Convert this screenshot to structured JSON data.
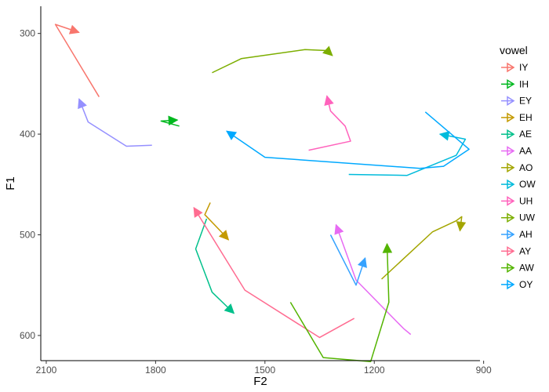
{
  "chart_data": {
    "type": "line",
    "title": "",
    "xlabel": "F2",
    "ylabel": "F1",
    "x_reversed": true,
    "y_reversed": true,
    "xlim": [
      2115,
      910
    ],
    "ylim": [
      625,
      273
    ],
    "x_ticks": [
      2100,
      1800,
      1500,
      1200,
      900
    ],
    "y_ticks": [
      300,
      400,
      500,
      600
    ],
    "grid": false,
    "legend": {
      "title": "vowel",
      "position": "right"
    },
    "series": [
      {
        "name": "IY",
        "color": "#F8766D",
        "points": [
          [
            1955,
            363
          ],
          [
            2025,
            321
          ],
          [
            2075,
            291
          ],
          [
            2010,
            299
          ]
        ]
      },
      {
        "name": "IH",
        "color": "#00B81F",
        "points": [
          [
            1735,
            392
          ],
          [
            1785,
            387
          ],
          [
            1740,
            386
          ]
        ]
      },
      {
        "name": "EY",
        "color": "#9590FF",
        "points": [
          [
            1810,
            411
          ],
          [
            1880,
            412
          ],
          [
            1985,
            388
          ],
          [
            2010,
            365
          ]
        ]
      },
      {
        "name": "EH",
        "color": "#C49A00",
        "points": [
          [
            1650,
            468
          ],
          [
            1665,
            480
          ],
          [
            1620,
            497
          ],
          [
            1600,
            505
          ]
        ]
      },
      {
        "name": "AE",
        "color": "#00C08B",
        "points": [
          [
            1660,
            484
          ],
          [
            1690,
            514
          ],
          [
            1645,
            557
          ],
          [
            1585,
            578
          ]
        ]
      },
      {
        "name": "AA",
        "color": "#E76BF3",
        "points": [
          [
            1100,
            599
          ],
          [
            1120,
            593
          ],
          [
            1250,
            545
          ],
          [
            1305,
            490
          ]
        ]
      },
      {
        "name": "AO",
        "color": "#A3A500",
        "points": [
          [
            1180,
            544
          ],
          [
            1040,
            497
          ],
          [
            975,
            486
          ],
          [
            960,
            482
          ],
          [
            965,
            496
          ]
        ]
      },
      {
        "name": "OW",
        "color": "#00BBDB",
        "points": [
          [
            1270,
            440
          ],
          [
            1110,
            441
          ],
          [
            975,
            421
          ],
          [
            950,
            405
          ],
          [
            1020,
            400
          ]
        ]
      },
      {
        "name": "UH",
        "color": "#FF62BC",
        "points": [
          [
            1380,
            416
          ],
          [
            1265,
            407
          ],
          [
            1280,
            392
          ],
          [
            1320,
            377
          ],
          [
            1330,
            362
          ]
        ]
      },
      {
        "name": "UW",
        "color": "#7CAE00",
        "points": [
          [
            1645,
            339
          ],
          [
            1565,
            325
          ],
          [
            1390,
            316
          ],
          [
            1330,
            317
          ],
          [
            1315,
            322
          ]
        ]
      },
      {
        "name": "AH",
        "color": "#35A2FF",
        "points": [
          [
            1320,
            500
          ],
          [
            1250,
            550
          ],
          [
            1225,
            523
          ]
        ]
      },
      {
        "name": "AY",
        "color": "#FF6C91",
        "points": [
          [
            1255,
            583
          ],
          [
            1350,
            602
          ],
          [
            1555,
            555
          ],
          [
            1695,
            473
          ]
        ]
      },
      {
        "name": "AW",
        "color": "#53B400",
        "points": [
          [
            1430,
            567
          ],
          [
            1340,
            622
          ],
          [
            1210,
            626
          ],
          [
            1160,
            567
          ],
          [
            1165,
            509
          ]
        ]
      },
      {
        "name": "OY",
        "color": "#00A9FF",
        "points": [
          [
            1060,
            378
          ],
          [
            940,
            415
          ],
          [
            1010,
            432
          ],
          [
            1075,
            434
          ],
          [
            1500,
            423
          ],
          [
            1605,
            397
          ]
        ]
      }
    ]
  }
}
